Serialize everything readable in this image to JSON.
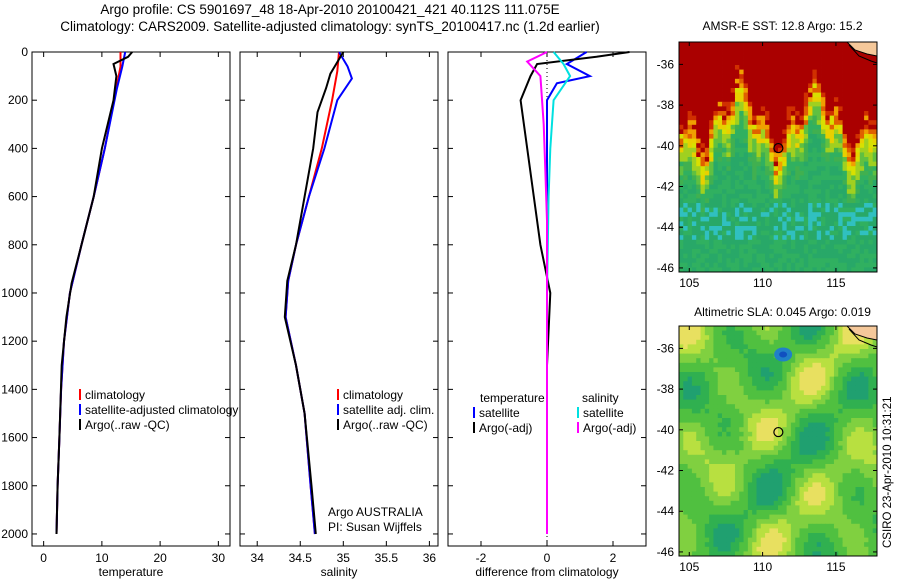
{
  "header": {
    "line1": "Argo profile: CS 5901697_48 18-Apr-2010 20100421_421 40.112S 111.075E",
    "line2": "Climatology: CARS2009. Satellite-adjusted climatology: synTS_20100417.nc (1.2d earlier)"
  },
  "map_sst": {
    "title": "AMSR-E SST: 12.8 Argo: 15.2",
    "lon_ticks": [
      "105",
      "110",
      "115"
    ],
    "lat_ticks": [
      "-36",
      "-38",
      "-40",
      "-42",
      "-44",
      "-46"
    ],
    "float_lon": 111.075,
    "float_lat": -40.112
  },
  "map_sla": {
    "title": "Altimetric SLA: 0.045 Argo: 0.019",
    "lon_ticks": [
      "105",
      "110",
      "115"
    ],
    "lat_ticks": [
      "-36",
      "-38",
      "-40",
      "-42",
      "-44",
      "-46"
    ],
    "float_lon": 111.075,
    "float_lat": -40.112
  },
  "stamp": "CSIRO 23-Apr-2010 10:31:21",
  "colors": {
    "climatology": "#ff0000",
    "satellite": "#0000ff",
    "argo": "#000000",
    "sat_sal": "#00e0e0",
    "argo_sal": "#ff00ff",
    "land": "#f5c89a"
  },
  "chart_data": [
    {
      "type": "line",
      "xlabel": "temperature",
      "ylabel": "",
      "xlim": [
        -2,
        32
      ],
      "ylim": [
        2050,
        0
      ],
      "xticks": [
        "0",
        "10",
        "20",
        "30"
      ],
      "yticks": [
        "0",
        "200",
        "400",
        "600",
        "800",
        "1000",
        "1200",
        "1400",
        "1600",
        "1800",
        "2000"
      ],
      "series": [
        {
          "name": "climatology",
          "color": "#ff0000",
          "points": [
            [
              13.2,
              0
            ],
            [
              13.2,
              60
            ],
            [
              12.5,
              150
            ],
            [
              10.5,
              400
            ],
            [
              8.6,
              600
            ],
            [
              6.5,
              800
            ],
            [
              4.5,
              1000
            ],
            [
              3.5,
              1200
            ],
            [
              3,
              1400
            ],
            [
              2.7,
              1600
            ],
            [
              2.4,
              1800
            ],
            [
              2.2,
              2000
            ]
          ]
        },
        {
          "name": "satellite-adjusted climatology",
          "color": "#0000ff",
          "points": [
            [
              14,
              0
            ],
            [
              13.5,
              60
            ],
            [
              12.6,
              150
            ],
            [
              10.5,
              400
            ],
            [
              8.6,
              600
            ],
            [
              6.5,
              800
            ],
            [
              4.5,
              1000
            ],
            [
              3.5,
              1200
            ],
            [
              3,
              1400
            ],
            [
              2.7,
              1600
            ],
            [
              2.4,
              1800
            ],
            [
              2.2,
              2000
            ]
          ]
        },
        {
          "name": "Argo(..raw -QC)",
          "color": "#000000",
          "points": [
            [
              15.2,
              0
            ],
            [
              14.5,
              20
            ],
            [
              12,
              50
            ],
            [
              12.5,
              100
            ],
            [
              12,
              200
            ],
            [
              11,
              300
            ],
            [
              10,
              400
            ],
            [
              8.6,
              600
            ],
            [
              6.5,
              800
            ],
            [
              4.8,
              960
            ],
            [
              3.9,
              1100
            ],
            [
              3.1,
              1300
            ],
            [
              2.7,
              1600
            ],
            [
              2.4,
              1800
            ],
            [
              2.2,
              2000
            ]
          ]
        }
      ],
      "legend": [
        "climatology",
        "satellite-adjusted climatology",
        "Argo(..raw -QC)"
      ]
    },
    {
      "type": "line",
      "xlabel": "salinity",
      "ylabel": "",
      "xlim": [
        33.8,
        36.1
      ],
      "ylim": [
        2050,
        0
      ],
      "xticks": [
        "34",
        "34.5",
        "35",
        "35.5",
        "36"
      ],
      "yticks": [],
      "series": [
        {
          "name": "climatology",
          "color": "#ff0000",
          "points": [
            [
              34.95,
              0
            ],
            [
              34.93,
              80
            ],
            [
              34.87,
              200
            ],
            [
              34.75,
              400
            ],
            [
              34.6,
              600
            ],
            [
              34.45,
              800
            ],
            [
              34.36,
              950
            ],
            [
              34.33,
              1100
            ],
            [
              34.45,
              1300
            ],
            [
              34.55,
              1500
            ],
            [
              34.62,
              1800
            ],
            [
              34.67,
              2000
            ]
          ]
        },
        {
          "name": "satellite adj. clim.",
          "color": "#0000ff",
          "points": [
            [
              34.95,
              0
            ],
            [
              35.05,
              60
            ],
            [
              35.1,
              110
            ],
            [
              34.93,
              200
            ],
            [
              34.78,
              400
            ],
            [
              34.6,
              600
            ],
            [
              34.45,
              800
            ],
            [
              34.36,
              950
            ],
            [
              34.33,
              1100
            ],
            [
              34.45,
              1300
            ],
            [
              34.55,
              1500
            ],
            [
              34.62,
              1800
            ],
            [
              34.67,
              2000
            ]
          ]
        },
        {
          "name": "Argo(..raw -QC)",
          "color": "#000000",
          "points": [
            [
              35.0,
              0
            ],
            [
              34.9,
              60
            ],
            [
              34.85,
              90
            ],
            [
              34.8,
              150
            ],
            [
              34.7,
              250
            ],
            [
              34.65,
              400
            ],
            [
              34.55,
              600
            ],
            [
              34.45,
              800
            ],
            [
              34.35,
              950
            ],
            [
              34.32,
              1100
            ],
            [
              34.45,
              1300
            ],
            [
              34.55,
              1500
            ],
            [
              34.63,
              1800
            ],
            [
              34.68,
              2000
            ]
          ]
        }
      ],
      "legend": [
        "climatology",
        "satellite adj. clim.",
        "Argo(..raw -QC)"
      ],
      "annotation": [
        "Argo AUSTRALIA",
        "PI: Susan Wijffels"
      ]
    },
    {
      "type": "line",
      "xlabel": "difference from climatology",
      "ylabel": "",
      "xlim": [
        -3,
        3
      ],
      "ylim": [
        2050,
        0
      ],
      "xticks": [
        "-2",
        "0",
        "2"
      ],
      "yticks": [],
      "series": [
        {
          "name": "temperature satellite",
          "color": "#0000ff",
          "points": [
            [
              1.2,
              0
            ],
            [
              0.6,
              50
            ],
            [
              1.3,
              100
            ],
            [
              0.3,
              130
            ],
            [
              0,
              200
            ],
            [
              0,
              400
            ],
            [
              0,
              1000
            ],
            [
              0,
              2000
            ]
          ]
        },
        {
          "name": "temperature Argo(-adj)",
          "color": "#000000",
          "points": [
            [
              2.5,
              0
            ],
            [
              1.5,
              20
            ],
            [
              -0.3,
              50
            ],
            [
              -0.5,
              100
            ],
            [
              -0.8,
              200
            ],
            [
              -0.6,
              400
            ],
            [
              -0.4,
              600
            ],
            [
              -0.2,
              800
            ],
            [
              0.1,
              1000
            ],
            [
              0,
              1300
            ],
            [
              0,
              2000
            ]
          ]
        },
        {
          "name": "salinity satellite",
          "color": "#00e0e0",
          "points": [
            [
              0.2,
              0
            ],
            [
              0.5,
              50
            ],
            [
              0.7,
              100
            ],
            [
              0.2,
              200
            ],
            [
              0.1,
              400
            ],
            [
              0.05,
              600
            ],
            [
              0,
              1000
            ],
            [
              0,
              2000
            ]
          ]
        },
        {
          "name": "salinity Argo(-adj)",
          "color": "#ff00ff",
          "points": [
            [
              0,
              0
            ],
            [
              -0.6,
              40
            ],
            [
              -0.2,
              100
            ],
            [
              -0.1,
              300
            ],
            [
              -0.05,
              500
            ],
            [
              0,
              700
            ],
            [
              0,
              2000
            ]
          ]
        }
      ],
      "legend_groups": [
        "temperature",
        "salinity"
      ],
      "legend": [
        "satellite",
        "Argo(-adj)",
        "satellite",
        "Argo(-adj)"
      ]
    }
  ]
}
